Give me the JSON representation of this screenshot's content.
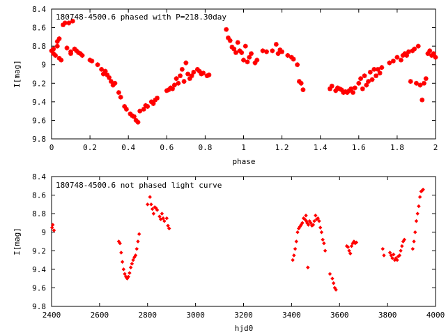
{
  "chart_data": [
    {
      "type": "scatter",
      "title": "180748-4500.6 phased with P=218.30day",
      "xlabel": "phase",
      "ylabel": "I[mag]",
      "xlim": [
        0,
        2
      ],
      "ylim": [
        9.8,
        8.4
      ],
      "y_reversed": true,
      "xticks": [
        "0",
        "0.2",
        "0.4",
        "0.6",
        "0.8",
        "1",
        "1.2",
        "1.4",
        "1.6",
        "1.8",
        "2"
      ],
      "yticks": [
        "8.4",
        "8.6",
        "8.8",
        "9",
        "9.2",
        "9.4",
        "9.6",
        "9.8"
      ],
      "grid": false,
      "marker": "star",
      "color": "#ff0000",
      "series": [
        {
          "points": [
            [
              0.0,
              8.85
            ],
            [
              0.01,
              8.88
            ],
            [
              0.01,
              8.83
            ],
            [
              0.02,
              8.9
            ],
            [
              0.03,
              8.8
            ],
            [
              0.03,
              8.75
            ],
            [
              0.04,
              8.93
            ],
            [
              0.04,
              8.72
            ],
            [
              0.05,
              8.95
            ],
            [
              0.06,
              8.57
            ],
            [
              0.07,
              8.55
            ],
            [
              0.08,
              8.82
            ],
            [
              0.09,
              8.55
            ],
            [
              0.1,
              8.86
            ],
            [
              0.1,
              8.88
            ],
            [
              0.11,
              8.53
            ],
            [
              0.12,
              8.83
            ],
            [
              0.13,
              8.85
            ],
            [
              0.14,
              8.87
            ],
            [
              0.15,
              8.88
            ],
            [
              0.16,
              8.9
            ],
            [
              0.2,
              8.95
            ],
            [
              0.21,
              8.96
            ],
            [
              0.24,
              9.0
            ],
            [
              0.26,
              9.05
            ],
            [
              0.27,
              9.1
            ],
            [
              0.28,
              9.07
            ],
            [
              0.29,
              9.11
            ],
            [
              0.3,
              9.14
            ],
            [
              0.31,
              9.18
            ],
            [
              0.32,
              9.22
            ],
            [
              0.33,
              9.2
            ],
            [
              0.35,
              9.3
            ],
            [
              0.36,
              9.35
            ],
            [
              0.38,
              9.45
            ],
            [
              0.39,
              9.48
            ],
            [
              0.41,
              9.53
            ],
            [
              0.42,
              9.55
            ],
            [
              0.43,
              9.56
            ],
            [
              0.44,
              9.6
            ],
            [
              0.45,
              9.62
            ],
            [
              0.46,
              9.5
            ],
            [
              0.48,
              9.48
            ],
            [
              0.49,
              9.44
            ],
            [
              0.5,
              9.45
            ],
            [
              0.52,
              9.4
            ],
            [
              0.53,
              9.42
            ],
            [
              0.54,
              9.38
            ],
            [
              0.55,
              9.36
            ],
            [
              0.6,
              9.28
            ],
            [
              0.61,
              9.27
            ],
            [
              0.62,
              9.25
            ],
            [
              0.63,
              9.26
            ],
            [
              0.64,
              9.22
            ],
            [
              0.65,
              9.15
            ],
            [
              0.66,
              9.2
            ],
            [
              0.67,
              9.12
            ],
            [
              0.68,
              9.05
            ],
            [
              0.69,
              9.18
            ],
            [
              0.7,
              8.98
            ],
            [
              0.71,
              9.1
            ],
            [
              0.72,
              9.15
            ],
            [
              0.73,
              9.12
            ],
            [
              0.74,
              9.08
            ],
            [
              0.76,
              9.05
            ],
            [
              0.77,
              9.07
            ],
            [
              0.78,
              9.1
            ],
            [
              0.79,
              9.09
            ],
            [
              0.81,
              9.12
            ],
            [
              0.82,
              9.11
            ],
            [
              0.91,
              8.62
            ],
            [
              0.92,
              8.71
            ],
            [
              0.93,
              8.74
            ],
            [
              0.94,
              8.81
            ],
            [
              0.95,
              8.83
            ],
            [
              0.96,
              8.87
            ],
            [
              0.97,
              8.76
            ],
            [
              0.98,
              8.85
            ],
            [
              0.99,
              8.87
            ],
            [
              1.0,
              8.95
            ],
            [
              1.01,
              8.8
            ],
            [
              1.02,
              8.97
            ],
            [
              1.03,
              8.92
            ],
            [
              1.04,
              8.88
            ],
            [
              1.06,
              8.98
            ],
            [
              1.07,
              8.95
            ],
            [
              1.1,
              8.85
            ],
            [
              1.12,
              8.86
            ],
            [
              1.15,
              8.85
            ],
            [
              1.17,
              8.78
            ],
            [
              1.18,
              8.88
            ],
            [
              1.19,
              8.84
            ],
            [
              1.2,
              8.86
            ],
            [
              1.23,
              8.9
            ],
            [
              1.25,
              8.92
            ],
            [
              1.26,
              8.94
            ],
            [
              1.28,
              9.0
            ],
            [
              1.29,
              9.18
            ],
            [
              1.3,
              9.2
            ],
            [
              1.31,
              9.27
            ],
            [
              1.45,
              9.26
            ],
            [
              1.46,
              9.23
            ],
            [
              1.48,
              9.28
            ],
            [
              1.49,
              9.25
            ],
            [
              1.5,
              9.26
            ],
            [
              1.51,
              9.27
            ],
            [
              1.52,
              9.3
            ],
            [
              1.53,
              9.29
            ],
            [
              1.54,
              9.3
            ],
            [
              1.55,
              9.28
            ],
            [
              1.56,
              9.26
            ],
            [
              1.57,
              9.3
            ],
            [
              1.58,
              9.25
            ],
            [
              1.6,
              9.2
            ],
            [
              1.61,
              9.15
            ],
            [
              1.62,
              9.26
            ],
            [
              1.63,
              9.12
            ],
            [
              1.64,
              9.22
            ],
            [
              1.65,
              9.18
            ],
            [
              1.66,
              9.08
            ],
            [
              1.67,
              9.16
            ],
            [
              1.68,
              9.05
            ],
            [
              1.69,
              9.12
            ],
            [
              1.7,
              9.05
            ],
            [
              1.71,
              9.09
            ],
            [
              1.72,
              9.03
            ],
            [
              1.76,
              8.98
            ],
            [
              1.78,
              8.96
            ],
            [
              1.8,
              8.92
            ],
            [
              1.82,
              8.95
            ],
            [
              1.83,
              8.9
            ],
            [
              1.84,
              8.88
            ],
            [
              1.85,
              8.9
            ],
            [
              1.86,
              8.86
            ],
            [
              1.87,
              9.18
            ],
            [
              1.88,
              8.85
            ],
            [
              1.89,
              8.83
            ],
            [
              1.9,
              9.2
            ],
            [
              1.91,
              8.8
            ],
            [
              1.92,
              9.22
            ],
            [
              1.93,
              9.38
            ],
            [
              1.94,
              9.2
            ],
            [
              1.95,
              9.15
            ],
            [
              1.96,
              8.88
            ],
            [
              1.97,
              8.85
            ],
            [
              1.98,
              8.9
            ],
            [
              1.99,
              8.88
            ],
            [
              2.0,
              8.92
            ]
          ]
        }
      ]
    },
    {
      "type": "scatter",
      "title": "180748-4500.6 not phased light curve",
      "xlabel": "hjd0",
      "ylabel": "I[mag]",
      "xlim": [
        2400,
        4000
      ],
      "ylim": [
        9.8,
        8.4
      ],
      "y_reversed": true,
      "xticks": [
        "2400",
        "2600",
        "2800",
        "3000",
        "3200",
        "3400",
        "3600",
        "3800",
        "4000"
      ],
      "yticks": [
        "8.4",
        "8.6",
        "8.8",
        "9",
        "9.2",
        "9.4",
        "9.6",
        "9.8"
      ],
      "grid": false,
      "marker": "diamond",
      "color": "#ff0000",
      "series": [
        {
          "points": [
            [
              2402,
              8.95
            ],
            [
              2405,
              8.92
            ],
            [
              2410,
              8.98
            ],
            [
              2680,
              9.1
            ],
            [
              2685,
              9.12
            ],
            [
              2690,
              9.22
            ],
            [
              2695,
              9.32
            ],
            [
              2700,
              9.4
            ],
            [
              2705,
              9.45
            ],
            [
              2710,
              9.48
            ],
            [
              2715,
              9.5
            ],
            [
              2720,
              9.48
            ],
            [
              2725,
              9.44
            ],
            [
              2730,
              9.38
            ],
            [
              2735,
              9.34
            ],
            [
              2740,
              9.3
            ],
            [
              2745,
              9.27
            ],
            [
              2750,
              9.25
            ],
            [
              2755,
              9.18
            ],
            [
              2760,
              9.1
            ],
            [
              2765,
              9.02
            ],
            [
              2800,
              8.7
            ],
            [
              2810,
              8.62
            ],
            [
              2815,
              8.7
            ],
            [
              2820,
              8.75
            ],
            [
              2825,
              8.8
            ],
            [
              2830,
              8.73
            ],
            [
              2835,
              8.74
            ],
            [
              2840,
              8.76
            ],
            [
              2850,
              8.83
            ],
            [
              2855,
              8.86
            ],
            [
              2860,
              8.8
            ],
            [
              2865,
              8.85
            ],
            [
              2870,
              8.88
            ],
            [
              2880,
              8.85
            ],
            [
              2885,
              8.93
            ],
            [
              2890,
              8.96
            ],
            [
              3405,
              9.3
            ],
            [
              3410,
              9.25
            ],
            [
              3415,
              9.18
            ],
            [
              3420,
              9.1
            ],
            [
              3425,
              9.0
            ],
            [
              3430,
              8.96
            ],
            [
              3435,
              8.94
            ],
            [
              3440,
              8.92
            ],
            [
              3445,
              8.9
            ],
            [
              3450,
              8.85
            ],
            [
              3455,
              8.86
            ],
            [
              3460,
              8.82
            ],
            [
              3462,
              8.88
            ],
            [
              3465,
              8.9
            ],
            [
              3468,
              9.38
            ],
            [
              3470,
              8.92
            ],
            [
              3475,
              8.88
            ],
            [
              3480,
              8.9
            ],
            [
              3485,
              8.93
            ],
            [
              3490,
              8.92
            ],
            [
              3495,
              8.88
            ],
            [
              3500,
              8.82
            ],
            [
              3505,
              8.86
            ],
            [
              3510,
              8.85
            ],
            [
              3515,
              8.88
            ],
            [
              3520,
              8.95
            ],
            [
              3525,
              9.0
            ],
            [
              3530,
              9.08
            ],
            [
              3535,
              9.12
            ],
            [
              3540,
              9.2
            ],
            [
              3560,
              9.45
            ],
            [
              3570,
              9.5
            ],
            [
              3575,
              9.55
            ],
            [
              3580,
              9.6
            ],
            [
              3585,
              9.62
            ],
            [
              3630,
              9.15
            ],
            [
              3635,
              9.16
            ],
            [
              3640,
              9.2
            ],
            [
              3645,
              9.23
            ],
            [
              3650,
              9.15
            ],
            [
              3655,
              9.12
            ],
            [
              3660,
              9.1
            ],
            [
              3665,
              9.12
            ],
            [
              3670,
              9.11
            ],
            [
              3780,
              9.18
            ],
            [
              3785,
              9.25
            ],
            [
              3810,
              9.22
            ],
            [
              3815,
              9.25
            ],
            [
              3820,
              9.28
            ],
            [
              3825,
              9.24
            ],
            [
              3830,
              9.3
            ],
            [
              3835,
              9.28
            ],
            [
              3840,
              9.3
            ],
            [
              3845,
              9.26
            ],
            [
              3850,
              9.25
            ],
            [
              3855,
              9.2
            ],
            [
              3860,
              9.15
            ],
            [
              3865,
              9.1
            ],
            [
              3870,
              9.08
            ],
            [
              3905,
              9.18
            ],
            [
              3910,
              9.1
            ],
            [
              3915,
              9.0
            ],
            [
              3920,
              8.88
            ],
            [
              3925,
              8.8
            ],
            [
              3930,
              8.72
            ],
            [
              3935,
              8.62
            ],
            [
              3940,
              8.56
            ],
            [
              3945,
              8.55
            ],
            [
              3948,
              8.54
            ]
          ]
        }
      ]
    }
  ]
}
